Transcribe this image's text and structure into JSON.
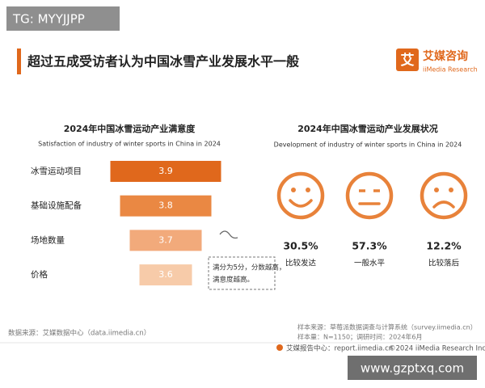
{
  "watermark_top": "TG: MYYJJPP",
  "header": {
    "title": "超过五成受访者认为中国冰雪产业发展水平一般",
    "logo_mark": "艾",
    "logo_name": "艾媒咨询",
    "logo_sub": "iiMedia Research"
  },
  "chart_data": [
    {
      "type": "bar",
      "title": "2024年中国冰雪运动产业满意度",
      "subtitle": "Satisfaction of industry of winter sports in China in 2024",
      "categories": [
        "冰雪运动项目",
        "基础设施配备",
        "场地数量",
        "价格"
      ],
      "values": [
        3.9,
        3.8,
        3.7,
        3.6
      ],
      "colors": [
        "#e0681c",
        "#ea8843",
        "#f2aa7b",
        "#f7cba9"
      ],
      "annotation": [
        "满分为5分，分数越高，",
        "满意度越高。"
      ]
    },
    {
      "type": "pictogram",
      "title": "2024年中国冰雪运动产业发展状况",
      "subtitle": "Development of industry of winter sports in China in 2024",
      "categories": [
        "比较发达",
        "一般水平",
        "比较落后"
      ],
      "values": [
        30.5,
        57.3,
        12.2
      ],
      "value_labels": [
        "30.5%",
        "57.3%",
        "12.2%"
      ],
      "color": "#e8823a"
    }
  ],
  "footer": {
    "source": "数据来源：艾媒数据中心（data.iimedia.cn）",
    "sample_source": "样本来源：草莓派数据调查与计算系统（survey.iimedia.cn）",
    "sample_size": "样本量：N=1150；调研时间：2024年6月",
    "report_center": "艾媒报告中心：report.iimedia.cn",
    "copyright": "©2024  iiMedia Research  Inc"
  },
  "watermark_bottom": "www.gzptxq.com"
}
